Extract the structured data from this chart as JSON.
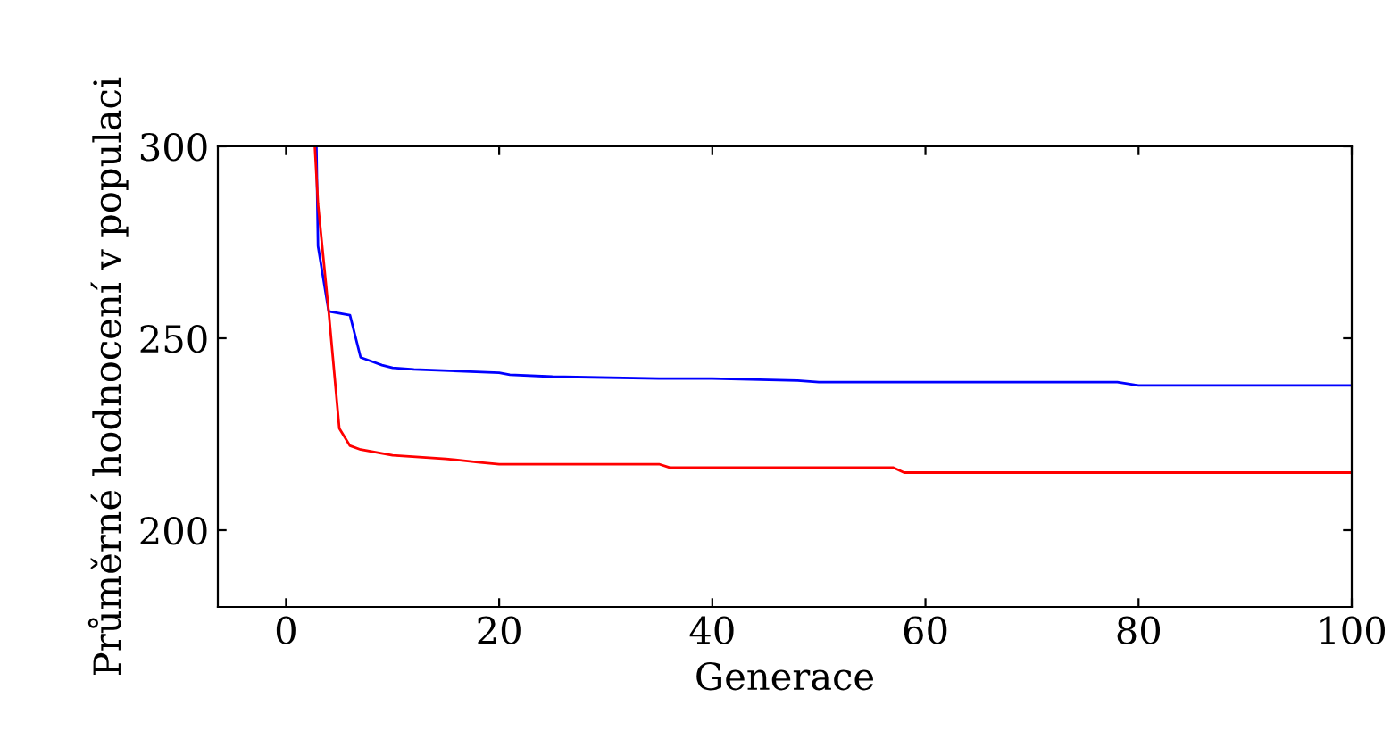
{
  "chart_data": {
    "type": "line",
    "xlabel": "Generace",
    "ylabel": "Průměrné hodnocení v populaci",
    "xlim": [
      -6.4,
      100
    ],
    "ylim": [
      180,
      300
    ],
    "xticks": [
      0,
      20,
      40,
      60,
      80,
      100
    ],
    "yticks": [
      200,
      250,
      300
    ],
    "grid": false,
    "legend": false,
    "series": [
      {
        "color": "#0000ff",
        "x": [
          2.85,
          3,
          4,
          6,
          7,
          8,
          9,
          10,
          12,
          20,
          21,
          25,
          35,
          40,
          48,
          50,
          78,
          80,
          100
        ],
        "values": [
          300,
          274,
          257,
          256,
          245,
          244,
          243,
          242.3,
          241.9,
          241,
          240.5,
          240,
          239.5,
          239.5,
          239,
          238.6,
          238.6,
          237.7,
          237.7
        ]
      },
      {
        "color": "#ff0000",
        "x": [
          2.7,
          3,
          4,
          5,
          6,
          7,
          10,
          15,
          18,
          20,
          35,
          36,
          57,
          58,
          100
        ],
        "values": [
          300,
          285,
          257,
          226.5,
          222,
          221,
          219.5,
          218.6,
          217.7,
          217.2,
          217.2,
          216.3,
          216.3,
          215,
          215
        ]
      }
    ]
  }
}
